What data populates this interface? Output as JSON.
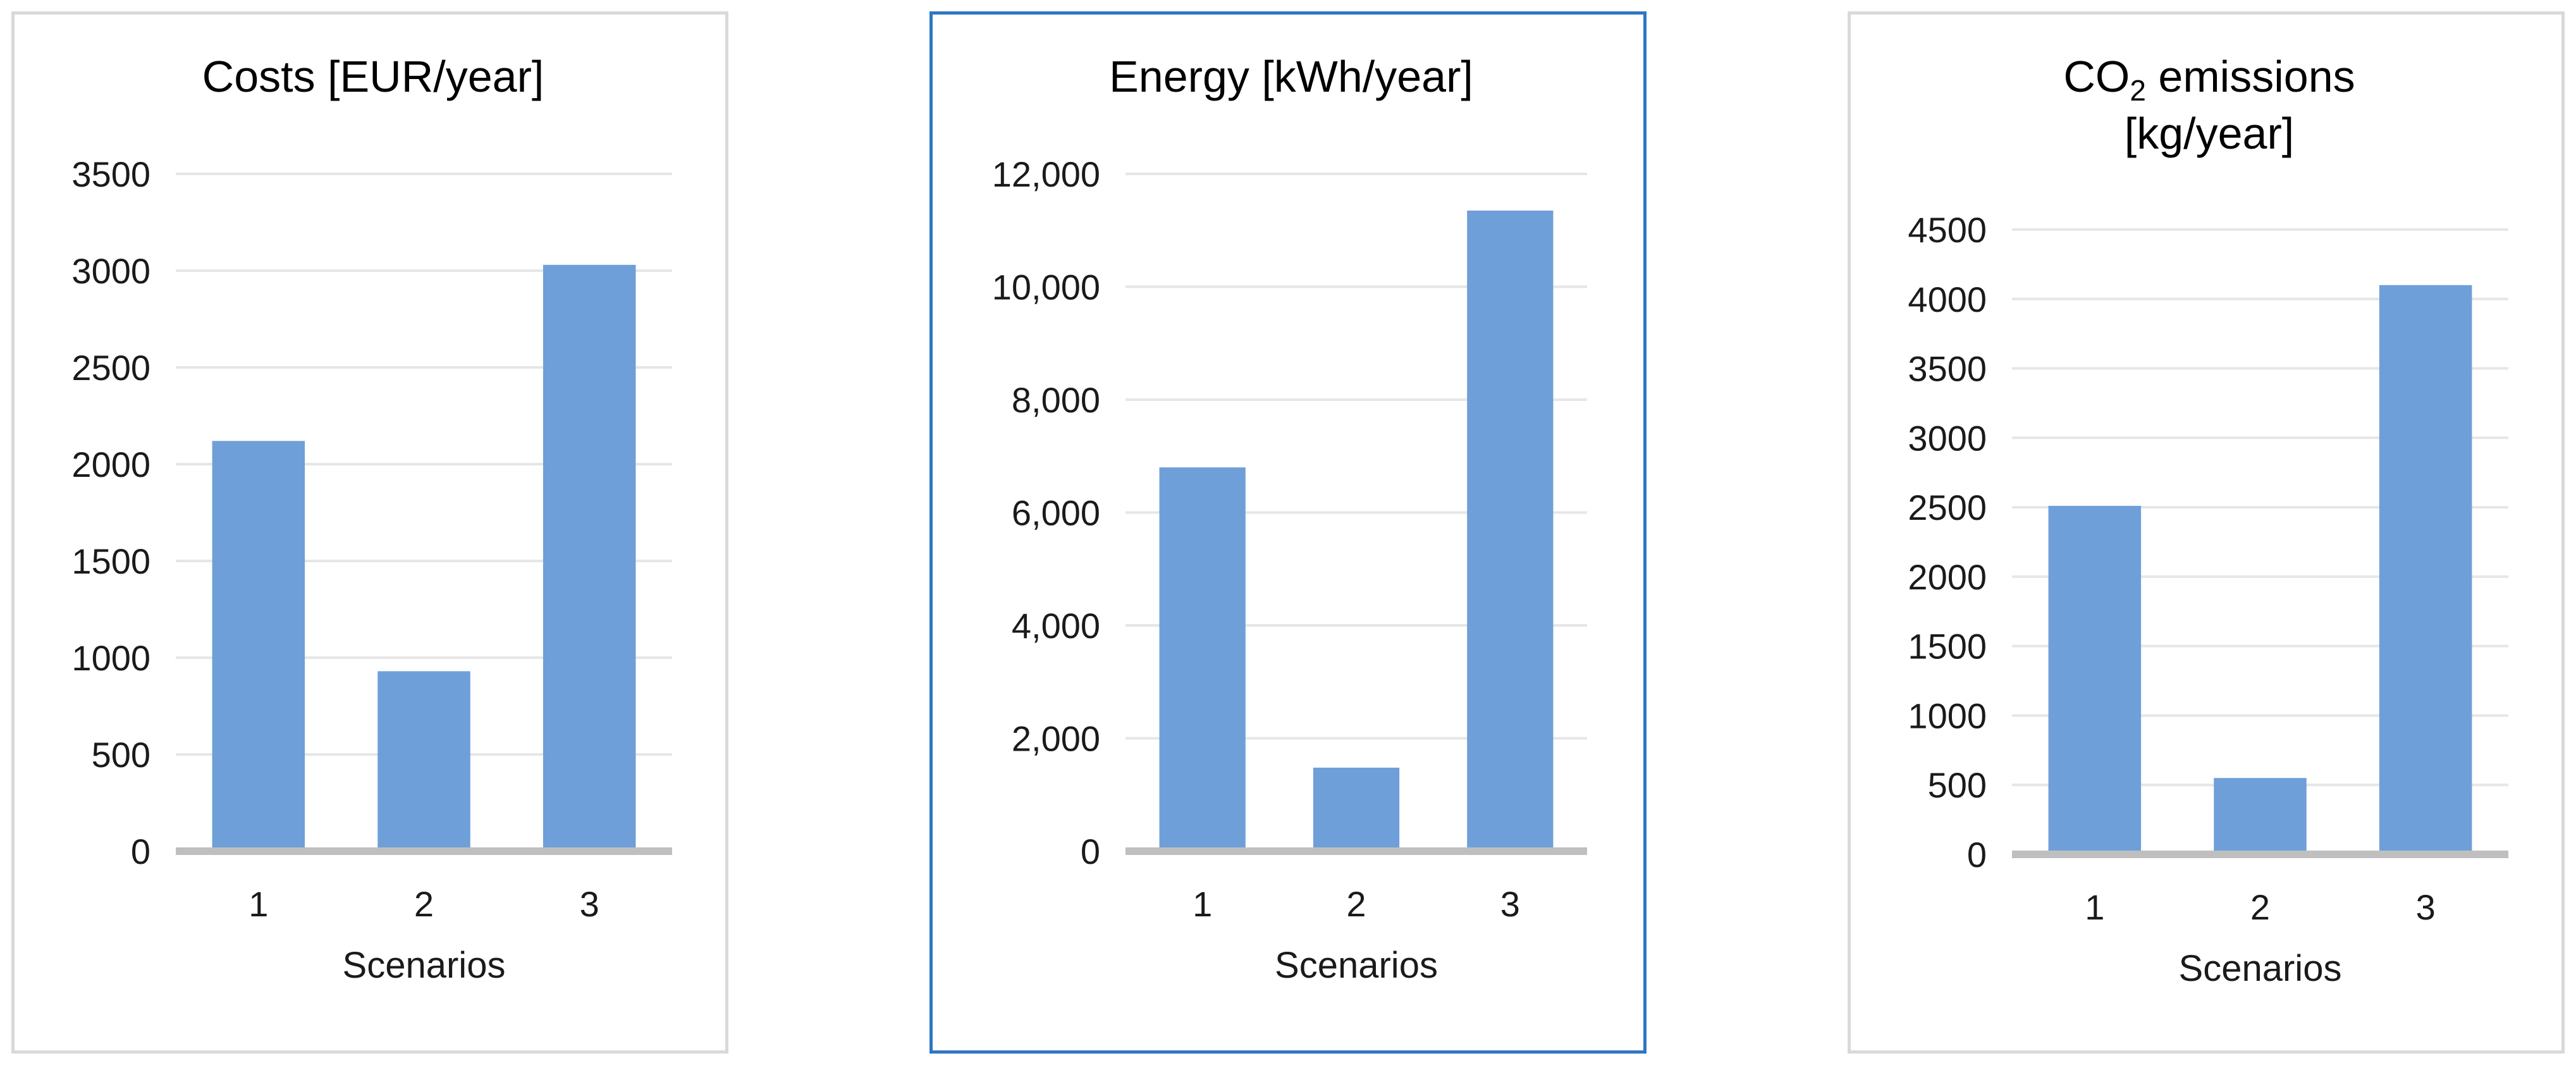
{
  "colors": {
    "bar": "#6f9fd8",
    "grid": "#e6e6e6",
    "axis": "#bfbfbf"
  },
  "chart_data": [
    {
      "type": "bar",
      "title": "Costs [EUR/year]",
      "title_sub": "",
      "title_rest": "",
      "title_line2": "",
      "xlabel": "Scenarios",
      "ylabel": "",
      "categories": [
        "1",
        "2",
        "3"
      ],
      "values": [
        2120,
        930,
        3030
      ],
      "ylim": [
        0,
        3500
      ],
      "yticks": [
        0,
        500,
        1000,
        1500,
        2000,
        2500,
        3000,
        3500
      ],
      "ytick_labels": [
        "0",
        "500",
        "1000",
        "1500",
        "2000",
        "2500",
        "3000",
        "3500"
      ],
      "grid": true,
      "legend": "none"
    },
    {
      "type": "bar",
      "title": "Energy [kWh/year]",
      "title_sub": "",
      "title_rest": "",
      "title_line2": "",
      "xlabel": "Scenarios",
      "ylabel": "",
      "categories": [
        "1",
        "2",
        "3"
      ],
      "values": [
        6800,
        1480,
        11350
      ],
      "ylim": [
        0,
        12000
      ],
      "yticks": [
        0,
        2000,
        4000,
        6000,
        8000,
        10000,
        12000
      ],
      "ytick_labels": [
        "0",
        "2,000",
        "4,000",
        "6,000",
        "8,000",
        "10,000",
        "12,000"
      ],
      "grid": true,
      "legend": "none"
    },
    {
      "type": "bar",
      "title": "CO",
      "title_sub": "2",
      "title_rest": " emissions",
      "title_line2": "[kg/year]",
      "xlabel": "Scenarios",
      "ylabel": "",
      "categories": [
        "1",
        "2",
        "3"
      ],
      "values": [
        2510,
        550,
        4100
      ],
      "ylim": [
        0,
        4500
      ],
      "yticks": [
        0,
        500,
        1000,
        1500,
        2000,
        2500,
        3000,
        3500,
        4000,
        4500
      ],
      "ytick_labels": [
        "0",
        "500",
        "1000",
        "1500",
        "2000",
        "2500",
        "3000",
        "3500",
        "4000",
        "4500"
      ],
      "grid": true,
      "legend": "none"
    }
  ]
}
